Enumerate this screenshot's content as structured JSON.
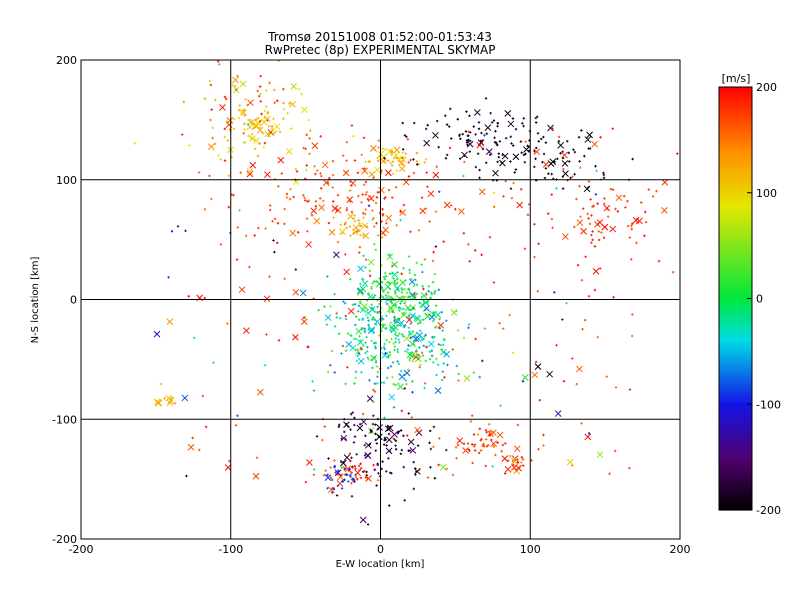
{
  "chart_data": {
    "type": "scatter",
    "title": "Tromsø 20151008 01:52:00-01:53:43",
    "subtitle": "RwPretec (8p) EXPERIMENTAL SKYMAP",
    "xlabel": "E-W location [km]",
    "ylabel": "N-S location [km]",
    "xlim": [
      -200,
      200
    ],
    "ylim": [
      -200,
      200
    ],
    "xticks": [
      -200,
      -100,
      0,
      100,
      200
    ],
    "yticks": [
      -200,
      -100,
      0,
      100,
      200
    ],
    "grid": true,
    "colorbar": {
      "label": "[m/s]",
      "min": -200,
      "max": 200,
      "ticks": [
        -200,
        -100,
        0,
        100,
        200
      ],
      "colormap": "rainbow (black-purple-blue-cyan-green-yellow-red)"
    },
    "marker_types": [
      "plus",
      "cross"
    ],
    "series": [
      {
        "center": [
          -85,
          150
        ],
        "spread": [
          22,
          30
        ],
        "count": 120,
        "vmin": 60,
        "vmax": 200
      },
      {
        "center": [
          -80,
          148
        ],
        "spread": [
          8,
          6
        ],
        "count": 30,
        "vmin": 90,
        "vmax": 130
      },
      {
        "center": [
          8,
          118
        ],
        "spread": [
          10,
          6
        ],
        "count": 50,
        "vmin": 80,
        "vmax": 140
      },
      {
        "center": [
          -20,
          85
        ],
        "spread": [
          28,
          18
        ],
        "count": 120,
        "vmin": 140,
        "vmax": 200
      },
      {
        "center": [
          -15,
          60
        ],
        "spread": [
          8,
          6
        ],
        "count": 30,
        "vmin": 100,
        "vmax": 150
      },
      {
        "center": [
          75,
          135
        ],
        "spread": [
          25,
          14
        ],
        "count": 110,
        "vmin": -200,
        "vmax": -170
      },
      {
        "center": [
          110,
          115
        ],
        "spread": [
          30,
          12
        ],
        "count": 60,
        "vmin": -200,
        "vmax": -180
      },
      {
        "center": [
          150,
          65
        ],
        "spread": [
          22,
          25
        ],
        "count": 70,
        "vmin": 160,
        "vmax": 200
      },
      {
        "center": [
          10,
          -25
        ],
        "spread": [
          20,
          25
        ],
        "count": 420,
        "vmin": -80,
        "vmax": 60
      },
      {
        "center": [
          10,
          10
        ],
        "spread": [
          10,
          10
        ],
        "count": 80,
        "vmin": -20,
        "vmax": 40
      },
      {
        "center": [
          0,
          -125
        ],
        "spread": [
          18,
          20
        ],
        "count": 120,
        "vmin": -200,
        "vmax": -150
      },
      {
        "center": [
          -20,
          -145
        ],
        "spread": [
          10,
          6
        ],
        "count": 40,
        "vmin": 150,
        "vmax": 200
      },
      {
        "center": [
          -25,
          -150
        ],
        "spread": [
          6,
          6
        ],
        "count": 25,
        "vmin": -110,
        "vmax": -70
      },
      {
        "center": [
          70,
          -120
        ],
        "spread": [
          10,
          6
        ],
        "count": 45,
        "vmin": 150,
        "vmax": 200
      },
      {
        "center": [
          87,
          -135
        ],
        "spread": [
          6,
          4
        ],
        "count": 20,
        "vmin": 120,
        "vmax": 200
      },
      {
        "center": [
          -145,
          -85
        ],
        "spread": [
          4,
          3
        ],
        "count": 12,
        "vmin": 100,
        "vmax": 140
      },
      {
        "center": [
          20,
          0
        ],
        "spread": [
          150,
          150
        ],
        "count": 220,
        "vmin": 150,
        "vmax": 200
      },
      {
        "center": [
          0,
          0
        ],
        "spread": [
          150,
          150
        ],
        "count": 60,
        "vmin": -200,
        "vmax": 200
      }
    ]
  }
}
